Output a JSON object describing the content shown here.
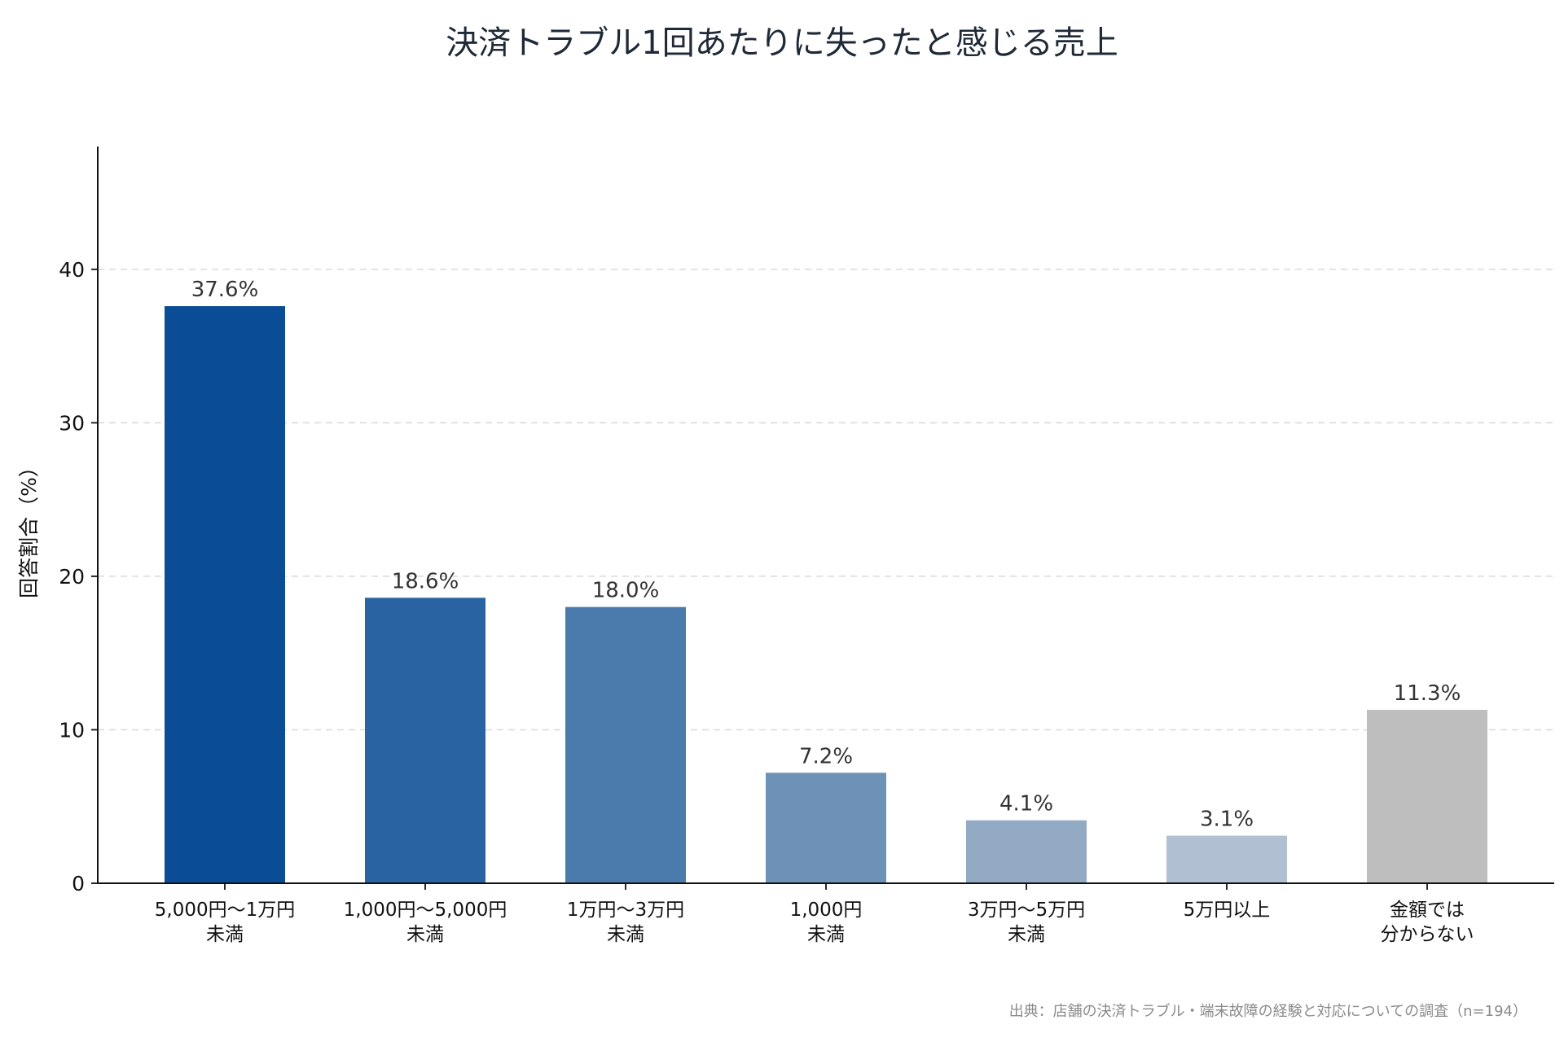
{
  "chart_data": {
    "type": "bar",
    "title": "決済トラブル1回あたりに失ったと感じる売上",
    "ylabel": "回答割合（%）",
    "xlabel": "",
    "ylim": [
      0,
      48
    ],
    "yticks": [
      0,
      10,
      20,
      30,
      40
    ],
    "grid": true,
    "categories": [
      [
        "5,000円〜1万円",
        "未満"
      ],
      [
        "1,000円〜5,000円",
        "未満"
      ],
      [
        "1万円〜3万円",
        "未満"
      ],
      [
        "1,000円",
        "未満"
      ],
      [
        "3万円〜5万円",
        "未満"
      ],
      [
        "5万円以上"
      ],
      [
        "金額では",
        "分からない"
      ]
    ],
    "values": [
      37.6,
      18.6,
      18.0,
      7.2,
      4.1,
      3.1,
      11.3
    ],
    "value_labels": [
      "37.6%",
      "18.6%",
      "18.0%",
      "7.2%",
      "4.1%",
      "3.1%",
      "11.3%"
    ],
    "colors": [
      "#0b4c97",
      "#2a63a2",
      "#4b7bad",
      "#6e91b8",
      "#93aac5",
      "#b0c0d2",
      "#bebebe"
    ],
    "source": "出典：店舗の決済トラブル・端末故障の経験と対応についての調査（n=194）"
  }
}
